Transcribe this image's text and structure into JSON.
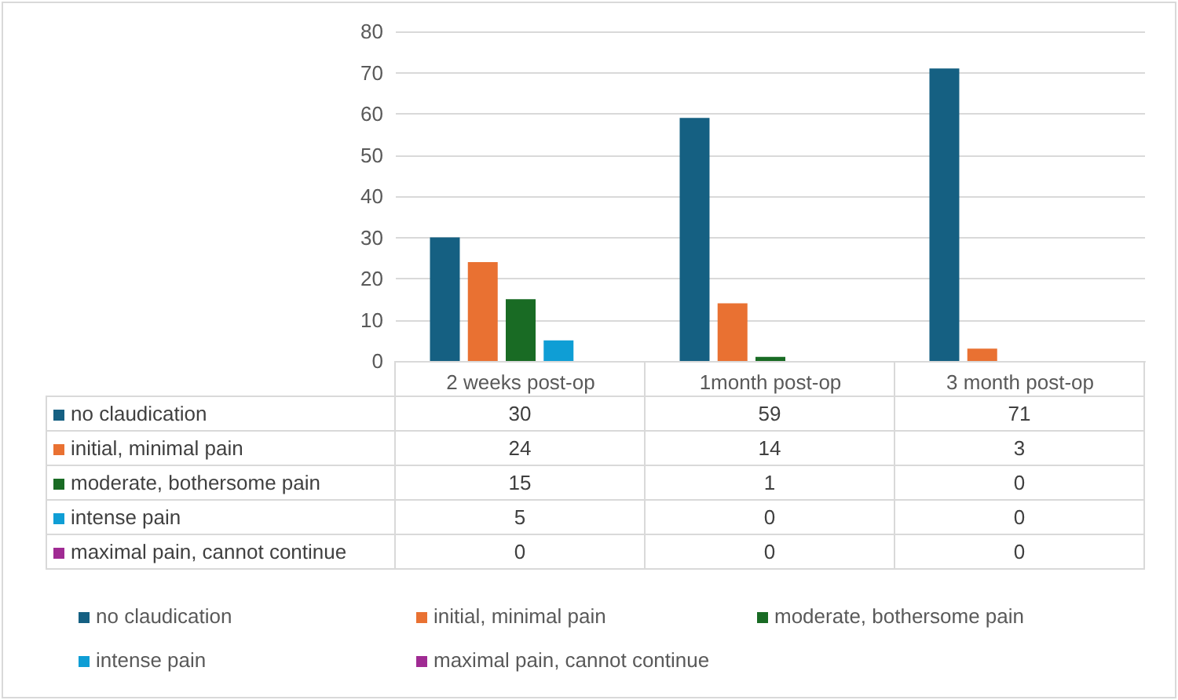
{
  "chart_data": {
    "type": "bar",
    "categories": [
      "2 weeks post-op",
      "1month post-op",
      "3 month post-op"
    ],
    "series": [
      {
        "name": "no claudication",
        "color": "#156082",
        "values": [
          30,
          59,
          71
        ]
      },
      {
        "name": "initial, minimal pain",
        "color": "#e97132",
        "values": [
          24,
          14,
          3
        ]
      },
      {
        "name": "moderate, bothersome pain",
        "color": "#196b24",
        "values": [
          15,
          1,
          0
        ]
      },
      {
        "name": "intense pain",
        "color": "#0f9ed5",
        "values": [
          5,
          0,
          0
        ]
      },
      {
        "name": "maximal pain, cannot continue",
        "color": "#a02b93",
        "values": [
          0,
          0,
          0
        ]
      }
    ],
    "ylim": [
      0,
      80
    ],
    "yticks": [
      0,
      10,
      20,
      30,
      40,
      50,
      60,
      70,
      80
    ],
    "grid": "y",
    "legend": "bottom",
    "data_labels": true
  }
}
